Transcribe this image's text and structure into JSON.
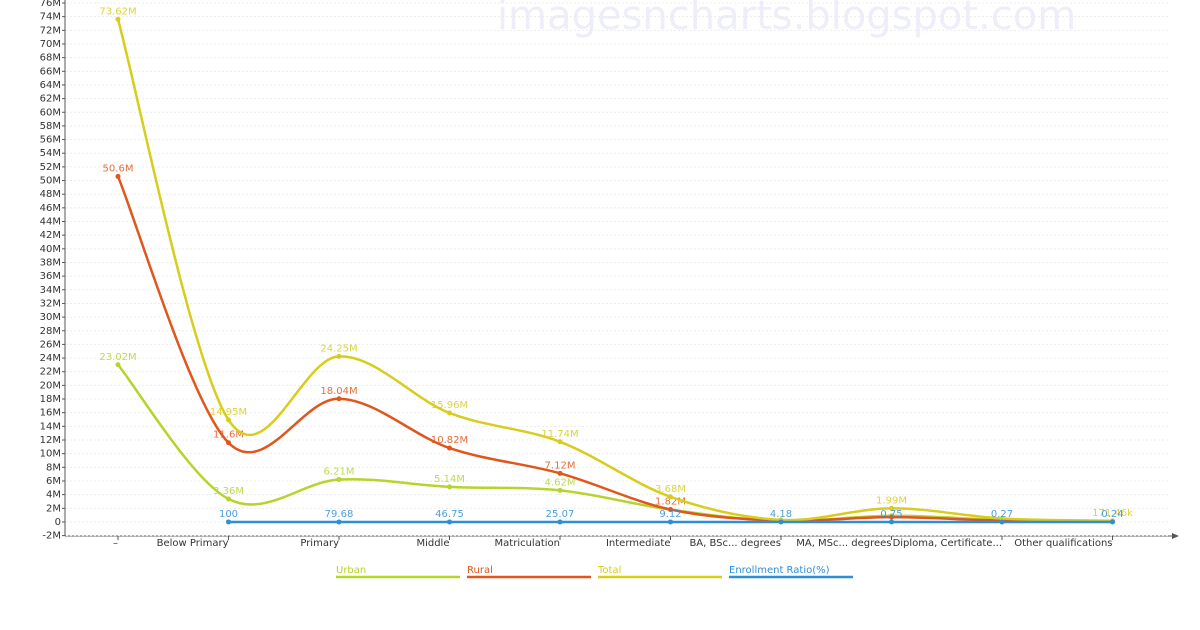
{
  "watermark": "imagesncharts.blogspot.com",
  "chart_data": {
    "type": "line",
    "smooth": true,
    "grid": true,
    "categories": [
      "–",
      "Below Primary",
      "Primary",
      "Middle",
      "Matriculation",
      "Intermediate",
      "BA, BSc... degrees",
      "MA, MSc... degrees",
      "Diploma, Certificate...",
      "Other qualifications"
    ],
    "ylim": [
      -2000000,
      76000000
    ],
    "yticks": [
      {
        "value": -2000000,
        "label": "-2M"
      },
      0,
      {
        "value": 2000000,
        "label": "2M"
      },
      {
        "value": 4000000,
        "label": "4M"
      },
      {
        "value": 6000000,
        "label": "6M"
      },
      {
        "value": 8000000,
        "label": "8M"
      },
      {
        "value": 10000000,
        "label": "10M"
      },
      {
        "value": 12000000,
        "label": "12M"
      },
      {
        "value": 14000000,
        "label": "14M"
      },
      {
        "value": 16000000,
        "label": "16M"
      },
      {
        "value": 18000000,
        "label": "18M"
      },
      {
        "value": 20000000,
        "label": "20M"
      },
      {
        "value": 22000000,
        "label": "22M"
      },
      {
        "value": 24000000,
        "label": "24M"
      },
      {
        "value": 26000000,
        "label": "26M"
      },
      {
        "value": 28000000,
        "label": "28M"
      },
      {
        "value": 30000000,
        "label": "30M"
      },
      {
        "value": 32000000,
        "label": "32M"
      },
      {
        "value": 34000000,
        "label": "34M"
      },
      {
        "value": 36000000,
        "label": "36M"
      },
      {
        "value": 38000000,
        "label": "38M"
      },
      {
        "value": 40000000,
        "label": "40M"
      },
      {
        "value": 42000000,
        "label": "42M"
      },
      {
        "value": 44000000,
        "label": "44M"
      },
      {
        "value": 46000000,
        "label": "46M"
      },
      {
        "value": 48000000,
        "label": "48M"
      },
      {
        "value": 50000000,
        "label": "50M"
      },
      {
        "value": 52000000,
        "label": "52M"
      },
      {
        "value": 54000000,
        "label": "54M"
      },
      {
        "value": 56000000,
        "label": "56M"
      },
      {
        "value": 58000000,
        "label": "58M"
      },
      {
        "value": 60000000,
        "label": "60M"
      },
      {
        "value": 62000000,
        "label": "62M"
      },
      {
        "value": 64000000,
        "label": "64M"
      },
      {
        "value": 66000000,
        "label": "66M"
      },
      {
        "value": 68000000,
        "label": "68M"
      },
      {
        "value": 70000000,
        "label": "70M"
      },
      {
        "value": 72000000,
        "label": "72M"
      },
      {
        "value": 74000000,
        "label": "74M"
      },
      {
        "value": 76000000,
        "label": "76M"
      }
    ],
    "series": [
      {
        "name": "Urban",
        "color": "#b5d42c",
        "values": [
          23020000,
          3360000,
          6210000,
          5140000,
          4620000,
          1800000,
          150000,
          900000,
          300000,
          100000
        ],
        "value_labels": [
          "23.02M",
          "3.36M",
          "6.21M",
          "5.14M",
          "4.62M",
          null,
          null,
          null,
          null,
          null
        ]
      },
      {
        "name": "Rural",
        "color": "#e0561c",
        "values": [
          50600000,
          11600000,
          18040000,
          10820000,
          7120000,
          1820000,
          200000,
          700000,
          200000,
          100000
        ],
        "value_labels": [
          "50.6M",
          "11.6M",
          "18.04M",
          "10.82M",
          "7.12M",
          "1.82M",
          null,
          null,
          null,
          null
        ]
      },
      {
        "name": "Total",
        "color": "#d8cc1c",
        "values": [
          73620000,
          14950000,
          24250000,
          15960000,
          11740000,
          3680000,
          300000,
          1990000,
          500000,
          171460
        ],
        "value_labels": [
          "73.62M",
          "14.95M",
          "24.25M",
          "15.96M",
          "11.74M",
          "3.68M",
          null,
          "1.99M",
          null,
          "171.46k"
        ]
      },
      {
        "name": "Enrollment Ratio(%)",
        "color": "#2e8fd4",
        "values": [
          null,
          100,
          79.68,
          46.75,
          25.07,
          9.12,
          4.18,
          0.75,
          0.27,
          0.24
        ]
      }
    ]
  }
}
